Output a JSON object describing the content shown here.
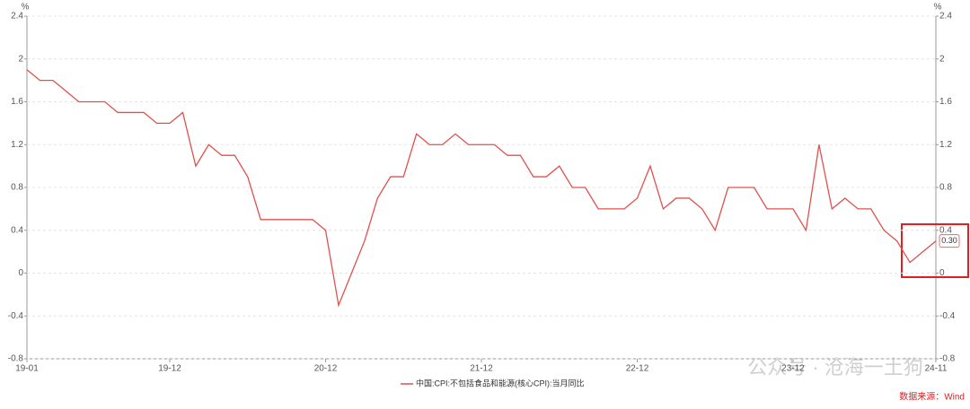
{
  "chart_data": {
    "type": "line",
    "y_unit": "%",
    "y2_unit": "%",
    "categories": [
      "19-01",
      null,
      null,
      null,
      null,
      null,
      null,
      null,
      null,
      null,
      null,
      "19-12",
      null,
      null,
      null,
      null,
      null,
      null,
      null,
      null,
      null,
      null,
      null,
      "20-12",
      null,
      null,
      null,
      null,
      null,
      null,
      null,
      null,
      null,
      null,
      null,
      "21-12",
      null,
      null,
      null,
      null,
      null,
      null,
      null,
      null,
      null,
      null,
      null,
      "22-12",
      null,
      null,
      null,
      null,
      null,
      null,
      null,
      null,
      null,
      null,
      null,
      "23-12",
      null,
      null,
      null,
      null,
      null,
      null,
      null,
      null,
      null,
      null,
      "24-11"
    ],
    "series": [
      {
        "name": "中国:CPI:不包括食品和能源(核心CPI):当月同比",
        "color": "#e0514d",
        "values": [
          1.9,
          1.8,
          1.8,
          1.7,
          1.6,
          1.6,
          1.6,
          1.5,
          1.5,
          1.5,
          1.4,
          1.4,
          1.5,
          1.0,
          1.2,
          1.1,
          1.1,
          0.9,
          0.5,
          0.5,
          0.5,
          0.5,
          0.5,
          0.4,
          -0.3,
          0.0,
          0.3,
          0.7,
          0.9,
          0.9,
          1.3,
          1.2,
          1.2,
          1.3,
          1.2,
          1.2,
          1.2,
          1.1,
          1.1,
          0.9,
          0.9,
          1.0,
          0.8,
          0.8,
          0.6,
          0.6,
          0.6,
          0.7,
          1.0,
          0.6,
          0.7,
          0.7,
          0.6,
          0.4,
          0.8,
          0.8,
          0.8,
          0.6,
          0.6,
          0.6,
          0.4,
          1.2,
          0.6,
          0.7,
          0.6,
          0.6,
          0.4,
          0.3,
          0.1,
          0.2,
          0.3
        ],
        "value_labels": [
          null,
          null,
          null,
          null,
          null,
          null,
          null,
          null,
          null,
          null,
          null,
          null,
          null,
          null,
          null,
          null,
          null,
          null,
          null,
          null,
          null,
          null,
          null,
          null,
          null,
          null,
          null,
          null,
          null,
          null,
          null,
          null,
          null,
          null,
          null,
          null,
          null,
          null,
          null,
          null,
          null,
          null,
          null,
          null,
          null,
          null,
          null,
          null,
          null,
          null,
          null,
          null,
          null,
          null,
          null,
          null,
          null,
          null,
          null,
          null,
          null,
          null,
          null,
          null,
          null,
          null,
          null,
          null,
          null,
          null,
          "0.30"
        ]
      }
    ],
    "ylim": [
      -0.8,
      2.4
    ],
    "yticks": [
      -0.8,
      -0.4,
      0,
      0.4,
      0.8,
      1.2,
      1.6,
      2,
      2.4
    ],
    "y2lim": [
      -0.8,
      2.4
    ],
    "y2ticks": [
      -0.8,
      -0.4,
      0,
      0.4,
      0.8,
      1.2,
      1.6,
      2,
      2.4
    ],
    "grid": true,
    "source": "数据来源：Wind",
    "watermark": "公众号 · 沧海一土狗"
  }
}
